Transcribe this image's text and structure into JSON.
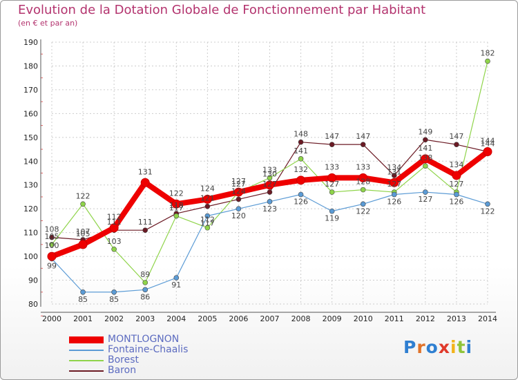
{
  "title": "Evolution de la Dotation Globale de Fonctionnement par Habitant",
  "subtitle": "(en € et par an)",
  "logo": [
    "P",
    "r",
    "o",
    "x",
    "i",
    "t",
    "i"
  ],
  "colors": {
    "title": "#b3336e",
    "grid": "#cccccc",
    "legend_text": "#5c6bc0"
  },
  "chart_data": {
    "type": "line",
    "title": "Evolution de la Dotation Globale de Fonctionnement par Habitant",
    "subtitle": "(en € et par an)",
    "xlabel": "",
    "ylabel": "",
    "ylim": [
      80,
      190
    ],
    "yticks": [
      80,
      90,
      100,
      110,
      120,
      130,
      140,
      150,
      160,
      170,
      180,
      190
    ],
    "x": [
      "2000",
      "2001",
      "2002",
      "2003",
      "2004",
      "2005",
      "2006",
      "2007",
      "2008",
      "2009",
      "2010",
      "2011",
      "2012",
      "2013",
      "2014"
    ],
    "legend_position": "bottom-left",
    "series": [
      {
        "name": "Baron",
        "color": "#6b1a24",
        "values": [
          108,
          107,
          111,
          111,
          118,
          121,
          124,
          127,
          148,
          147,
          147,
          134,
          149,
          147,
          144
        ],
        "labels": [
          "108",
          "107",
          "111",
          "111",
          "118",
          "121",
          "124",
          "127",
          "148",
          "147",
          "147",
          "134",
          "149",
          "147",
          "144"
        ]
      },
      {
        "name": "Borest",
        "color": "#8fd44a",
        "values": [
          105,
          122,
          103,
          89,
          117,
          112,
          127,
          133,
          141,
          127,
          128,
          127,
          138,
          127,
          182
        ],
        "labels": [
          "105",
          "122",
          "103",
          "89",
          "117",
          "112",
          "127",
          "133",
          "141",
          "127",
          "128",
          "127",
          "138",
          "127",
          "182"
        ]
      },
      {
        "name": "Fontaine-Chaalis",
        "color": "#5b9bd5",
        "values": [
          99,
          85,
          85,
          86,
          91,
          117,
          120,
          123,
          126,
          119,
          122,
          126,
          127,
          126,
          122
        ],
        "labels": [
          "99",
          "85",
          "85",
          "86",
          "91",
          "117",
          "120",
          "123",
          "126",
          "119",
          "122",
          "126",
          "127",
          "126",
          "122"
        ]
      },
      {
        "name": "MONTLOGNON",
        "color": "#ee0000",
        "values": [
          100,
          105,
          112,
          131,
          122,
          124,
          127,
          130,
          132,
          133,
          133,
          131,
          141,
          134,
          144
        ],
        "labels": [
          "100",
          "105",
          "112",
          "131",
          "122",
          "124",
          "127",
          "130",
          "132",
          "133",
          "133",
          "131",
          "141",
          "134",
          "144"
        ]
      }
    ],
    "legend_order": [
      "MONTLOGNON",
      "Fontaine-Chaalis",
      "Borest",
      "Baron"
    ]
  }
}
